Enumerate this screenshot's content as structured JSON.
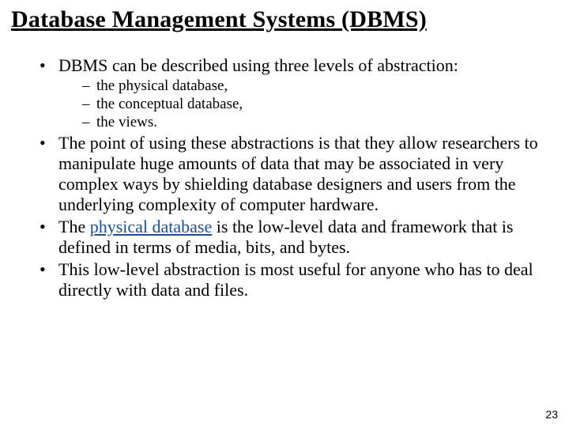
{
  "title": "Database Management Systems (DBMS)",
  "bullets": {
    "b1": "DBMS can be described using three levels of abstraction:",
    "sub1": "the physical database,",
    "sub2": "the conceptual database,",
    "sub3": "the views.",
    "b2": "The point of using these abstractions is that they allow researchers to manipulate huge amounts of data that may be associated in very complex ways by shielding database designers and users from the underlying complexity of computer hardware.",
    "b3_pre": "The ",
    "b3_term": "physical database",
    "b3_post": " is the low-level data and framework that is defined in terms of media, bits, and bytes.",
    "b4": "This low-level abstraction is most useful for anyone who has to deal directly with data and files."
  },
  "page_number": "23",
  "colors": {
    "background": "#ffffff",
    "text": "#000000",
    "keyterm": "#205088"
  },
  "fonts": {
    "title_size_pt": 30,
    "body_size_pt": 22,
    "sub_size_pt": 19,
    "pagenum_size_pt": 14,
    "family": "Times New Roman"
  }
}
